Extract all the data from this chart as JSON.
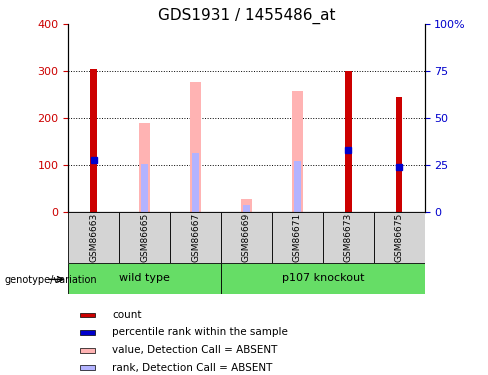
{
  "title": "GDS1931 / 1455486_at",
  "samples": [
    "GSM86663",
    "GSM86665",
    "GSM86667",
    "GSM86669",
    "GSM86671",
    "GSM86673",
    "GSM86675"
  ],
  "count_values": [
    305,
    null,
    null,
    null,
    null,
    300,
    245
  ],
  "percentile_values": [
    110,
    null,
    null,
    null,
    null,
    132,
    96
  ],
  "absent_value_values": [
    null,
    190,
    278,
    28,
    258,
    null,
    null
  ],
  "absent_rank_values": [
    null,
    102,
    125,
    15,
    108,
    null,
    null
  ],
  "group_positions": {
    "wild type": [
      0,
      1,
      2
    ],
    "p107 knockout": [
      3,
      4,
      5,
      6
    ]
  },
  "ylim_left": [
    0,
    400
  ],
  "ylim_right": [
    0,
    100
  ],
  "yticks_left": [
    0,
    100,
    200,
    300,
    400
  ],
  "yticks_right": [
    0,
    25,
    50,
    75,
    100
  ],
  "ytick_right_labels": [
    "0",
    "25",
    "50",
    "75",
    "100%"
  ],
  "grid_lines": [
    100,
    200,
    300
  ],
  "count_color": "#cc0000",
  "percentile_color": "#0000cc",
  "absent_value_color": "#ffb3b3",
  "absent_rank_color": "#b3b3ff",
  "group_color": "#66dd66",
  "sample_box_color": "#d4d4d4",
  "legend_items": [
    {
      "label": "count",
      "color": "#cc0000"
    },
    {
      "label": "percentile rank within the sample",
      "color": "#0000cc"
    },
    {
      "label": "value, Detection Call = ABSENT",
      "color": "#ffb3b3"
    },
    {
      "label": "rank, Detection Call = ABSENT",
      "color": "#b3b3ff"
    }
  ],
  "title_fontsize": 11,
  "tick_fontsize": 8,
  "label_fontsize": 7.5,
  "axis_color_left": "#cc0000",
  "axis_color_right": "#0000cc",
  "count_bar_width": 0.13,
  "absent_value_bar_width": 0.22,
  "absent_rank_bar_width": 0.13
}
